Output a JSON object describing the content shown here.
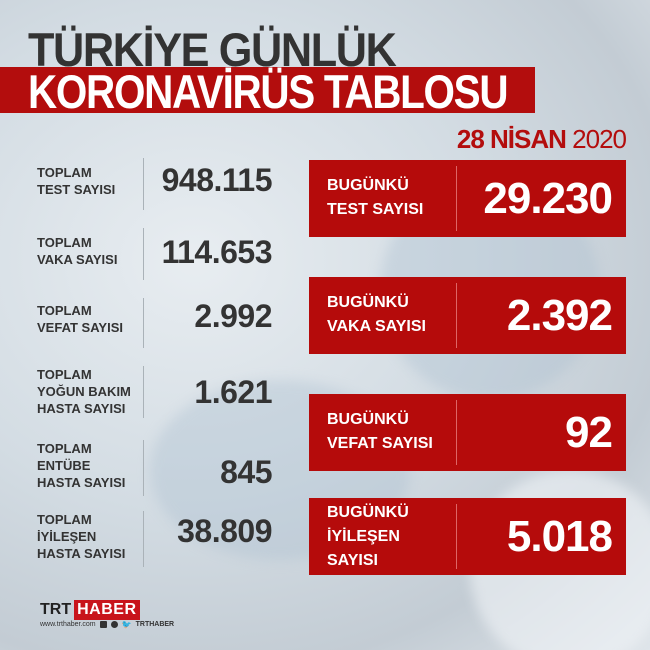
{
  "title": {
    "line1": "TÜRKİYE GÜNLÜK",
    "line2": "KORONAVİRÜS TABLOSU"
  },
  "date": {
    "day_month": "28 NİSAN",
    "year": "2020"
  },
  "totals": [
    {
      "label": "TOPLAM\nTEST SAYISI",
      "value": "948.115"
    },
    {
      "label": "TOPLAM\nVAKA SAYISI",
      "value": "114.653"
    },
    {
      "label": "TOPLAM\nVEFAT SAYISI",
      "value": "2.992"
    },
    {
      "label": "TOPLAM\nYOĞUN BAKIM\nHASTA SAYISI",
      "value": "1.621"
    },
    {
      "label": "TOPLAM\nENTÜBE\nHASTA SAYISI",
      "value": "845"
    },
    {
      "label": "TOPLAM\nİYİLEŞEN\nHASTA SAYISI",
      "value": "38.809"
    }
  ],
  "today": [
    {
      "label": "BUGÜNKÜ\nTEST SAYISI",
      "value": "29.230"
    },
    {
      "label": "BUGÜNKÜ\nVAKA SAYISI",
      "value": "2.392"
    },
    {
      "label": "BUGÜNKÜ\nVEFAT SAYISI",
      "value": "92"
    },
    {
      "label": "BUGÜNKÜ\nİYİLEŞEN\nSAYISI",
      "value": "5.018"
    }
  ],
  "footer": {
    "logo_trt": "TRT",
    "logo_haber": "HABER",
    "website": "www.trthaber.com",
    "social_handle": "TRTHABER",
    "icons": [
      "facebook-icon",
      "instagram-icon",
      "twitter-icon"
    ]
  },
  "colors": {
    "accent": "#b50b0b",
    "text": "#333333"
  }
}
